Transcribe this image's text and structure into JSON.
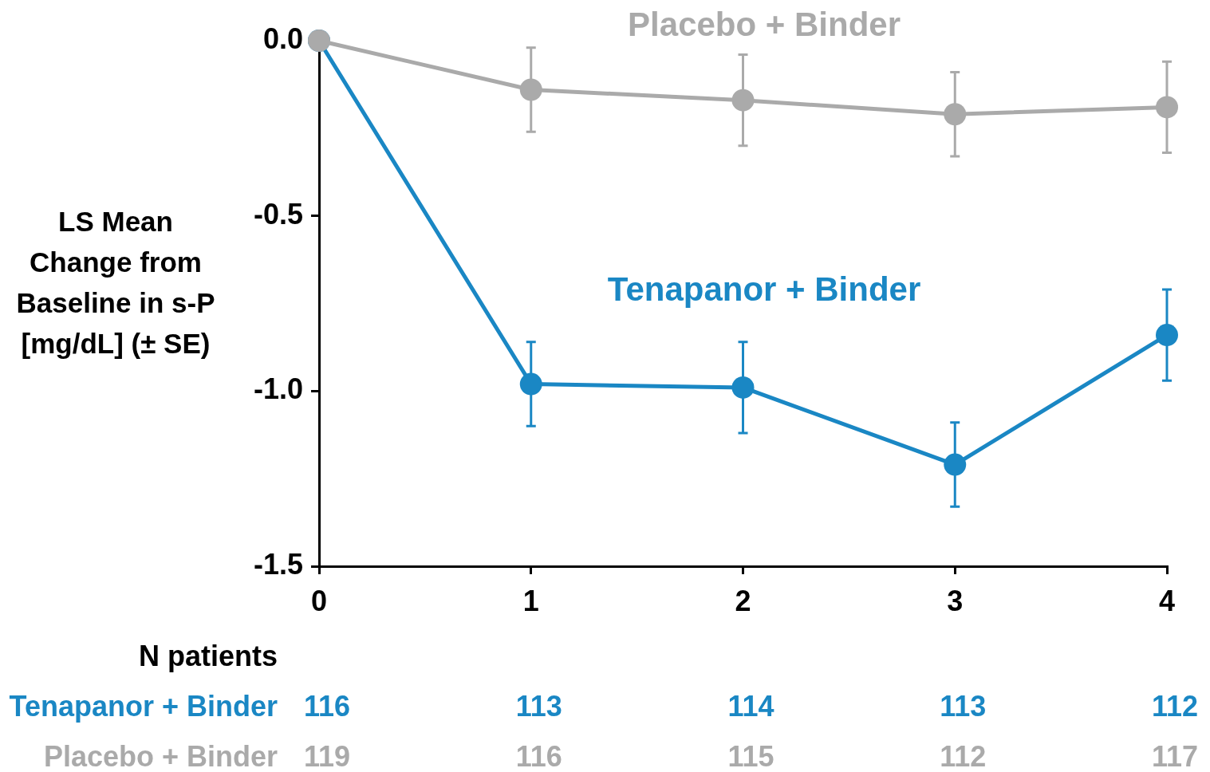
{
  "chart_data": {
    "type": "line",
    "ylabel": "LS Mean Change from Baseline in s-P [mg/dL] (± SE)",
    "x": [
      0,
      1,
      2,
      3,
      4
    ],
    "xlim": [
      0,
      4
    ],
    "xticks": [
      0,
      1,
      2,
      3,
      4
    ],
    "ylim": [
      -1.5,
      0
    ],
    "yticks": [
      {
        "value": 0,
        "label": "0.0"
      },
      {
        "value": -0.5,
        "label": "-0.5"
      },
      {
        "value": -1,
        "label": "-1.0"
      },
      {
        "value": -1.5,
        "label": "-1.5"
      }
    ],
    "grid": false,
    "legend": false,
    "marker": "circle",
    "line_style": "solid",
    "series": [
      {
        "name": "Placebo + Binder",
        "color": "#aaaaaa",
        "values": [
          0,
          -0.14,
          -0.17,
          -0.21,
          -0.19
        ],
        "errors": [
          null,
          0.12,
          0.13,
          0.12,
          0.13
        ]
      },
      {
        "name": "Tenapanor + Binder",
        "color": "#1a87c4",
        "values": [
          0,
          -0.98,
          -0.99,
          -1.21,
          -0.84
        ],
        "errors": [
          null,
          0.12,
          0.13,
          0.12,
          0.13
        ]
      }
    ],
    "annotations": [
      "N patients",
      "Tenapanor + Binder",
      "116",
      "113",
      "114",
      "113",
      "112",
      "Placebo + Binder",
      "119",
      "116",
      "115",
      "112",
      "117"
    ]
  }
}
